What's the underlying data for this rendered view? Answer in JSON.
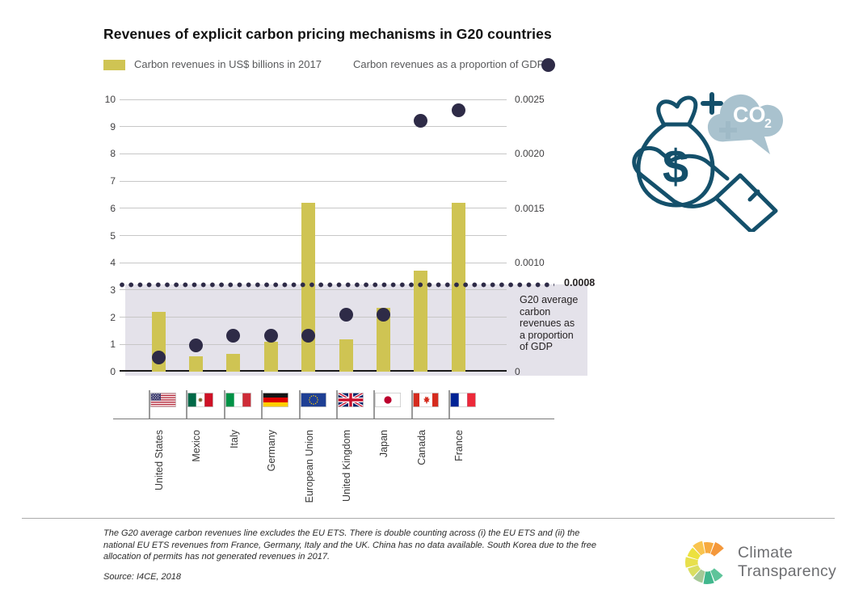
{
  "title": "Revenues of explicit carbon pricing mechanisms in G20 countries",
  "legend": {
    "bars_label": "Carbon revenues in US$ billions in 2017",
    "dots_label": "Carbon revenues as a proportion of GDP"
  },
  "chart_data": {
    "type": "bar+scatter",
    "title": "Revenues of explicit carbon pricing mechanisms in G20 countries",
    "categories": [
      "United States",
      "Mexico",
      "Italy",
      "Germany",
      "European Union",
      "United Kingdom",
      "Japan",
      "Canada",
      "France"
    ],
    "flags": [
      "us",
      "mx",
      "it",
      "de",
      "eu",
      "gb",
      "jp",
      "ca",
      "fr"
    ],
    "series": [
      {
        "name": "Carbon revenues in US$ billions in 2017",
        "type": "bar",
        "axis": "left",
        "values": [
          2.2,
          0.55,
          0.65,
          1.1,
          6.2,
          1.2,
          2.35,
          3.7,
          6.2
        ]
      },
      {
        "name": "Carbon revenues as a proportion of GDP",
        "type": "scatter",
        "axis": "right",
        "values": [
          0.00013,
          0.00024,
          0.00033,
          0.00033,
          0.00033,
          0.00052,
          0.00052,
          0.0023,
          0.0024
        ]
      }
    ],
    "left_axis": {
      "range": [
        0,
        10
      ],
      "ticks": [
        0,
        1,
        2,
        3,
        4,
        5,
        6,
        7,
        8,
        9,
        10
      ]
    },
    "right_axis": {
      "range": [
        0,
        0.0025
      ],
      "units_per_left_unit": 0.00025,
      "labels": [
        {
          "text": "0.0025",
          "units": 10
        },
        {
          "text": "0.0020",
          "units": 8
        },
        {
          "text": "0.0015",
          "units": 6
        },
        {
          "text": "0.0010",
          "units": 4
        },
        {
          "text": "0",
          "units": 0
        }
      ]
    },
    "reference_line": {
      "value": 0.0008,
      "label": "0.0008",
      "units": 3.2,
      "annotation": "G20 average\ncarbon\nrevenues as\na proportion\nof GDP"
    },
    "grid": true,
    "legend_position": "top"
  },
  "icon": {
    "dollar": "$",
    "co2_label": "CO",
    "co2_sub": "2"
  },
  "footnote": "The G20 average carbon revenues line excludes the EU ETS. There is double counting across (i) the EU ETS and (ii) the national EU ETS revenues from France, Germany, Italy and the UK. China has no data available. South Korea due to the free allocation of permits has not generated revenues in 2017.",
  "source": "Source: I4CE, 2018",
  "logo": {
    "line1": "Climate",
    "line2": "Transparency",
    "wheel_colors": [
      "#f4983b",
      "#f7aa3f",
      "#f9c44e",
      "#ece13e",
      "#e8e04c",
      "#dade62",
      "#a5c997",
      "#41b78d",
      "#5ec49a"
    ]
  },
  "colors": {
    "bar": "#cfc453",
    "dot": "#2e2b47",
    "shading": "#e4e2ea",
    "grid": "#c7c7c7",
    "axis": "#1a1a1a",
    "icon_teal": "#14506b",
    "cloud": "#a9c2ce",
    "logo_text": "#6d6e71"
  }
}
